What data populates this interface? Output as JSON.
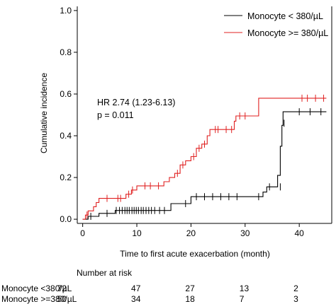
{
  "chart_data": {
    "type": "line",
    "xlabel": "Time to first acute exacerbation (month)",
    "ylabel": "Cumulative incidence",
    "xlim": [
      -1,
      46
    ],
    "ylim": [
      -0.02,
      1.02
    ],
    "x_ticks": [
      0,
      10,
      20,
      30,
      40
    ],
    "y_ticks": [
      0.0,
      0.2,
      0.4,
      0.6,
      0.8,
      1.0
    ],
    "x_tick_labels": [
      "0",
      "10",
      "20",
      "30",
      "40"
    ],
    "y_tick_labels": [
      "0.0",
      "0.2",
      "0.4",
      "0.6",
      "0.8",
      "1.0"
    ],
    "legend_position": "top-right",
    "annotations": [
      "HR 2.74 (1.23-6.13)",
      "p =  0.011"
    ],
    "series": [
      {
        "name": "Monocyte  < 380/µL",
        "color": "#000000",
        "steps": [
          [
            0,
            0
          ],
          [
            1,
            0.014
          ],
          [
            3,
            0.028
          ],
          [
            6,
            0.042
          ],
          [
            7,
            0.042
          ],
          [
            16,
            0.042
          ],
          [
            16.3,
            0.075
          ],
          [
            19.5,
            0.075
          ],
          [
            20,
            0.108
          ],
          [
            33,
            0.108
          ],
          [
            33.3,
            0.13
          ],
          [
            34,
            0.155
          ],
          [
            35,
            0.155
          ],
          [
            36,
            0.21
          ],
          [
            36.5,
            0.35
          ],
          [
            36.8,
            0.45
          ],
          [
            37,
            0.515
          ],
          [
            45,
            0.515
          ]
        ],
        "censored": [
          [
            1.5,
            0.014
          ],
          [
            4.5,
            0.028
          ],
          [
            6.2,
            0.042
          ],
          [
            6.8,
            0.042
          ],
          [
            7.3,
            0.042
          ],
          [
            7.8,
            0.042
          ],
          [
            8.2,
            0.042
          ],
          [
            8.6,
            0.042
          ],
          [
            9.1,
            0.042
          ],
          [
            9.5,
            0.042
          ],
          [
            9.9,
            0.042
          ],
          [
            10.3,
            0.042
          ],
          [
            10.8,
            0.042
          ],
          [
            11.2,
            0.042
          ],
          [
            11.7,
            0.042
          ],
          [
            12.2,
            0.042
          ],
          [
            12.7,
            0.042
          ],
          [
            13.3,
            0.042
          ],
          [
            14.2,
            0.042
          ],
          [
            15.1,
            0.042
          ],
          [
            19,
            0.075
          ],
          [
            21,
            0.108
          ],
          [
            22.5,
            0.108
          ],
          [
            24,
            0.108
          ],
          [
            25.5,
            0.108
          ],
          [
            27,
            0.108
          ],
          [
            28.5,
            0.108
          ],
          [
            32.5,
            0.108
          ],
          [
            34.5,
            0.155
          ],
          [
            36.5,
            0.155
          ],
          [
            37.2,
            0.46
          ],
          [
            40,
            0.515
          ],
          [
            42,
            0.515
          ],
          [
            44,
            0.515
          ]
        ]
      },
      {
        "name": "Monocyte  >= 380/µL",
        "color": "#e02020",
        "steps": [
          [
            0,
            0
          ],
          [
            0.5,
            0.02
          ],
          [
            1,
            0.04
          ],
          [
            2,
            0.06
          ],
          [
            2.5,
            0.08
          ],
          [
            3,
            0.1
          ],
          [
            8,
            0.12
          ],
          [
            9,
            0.14
          ],
          [
            10,
            0.16
          ],
          [
            15,
            0.18
          ],
          [
            16,
            0.2
          ],
          [
            17,
            0.22
          ],
          [
            18,
            0.26
          ],
          [
            19,
            0.28
          ],
          [
            20,
            0.3
          ],
          [
            21,
            0.34
          ],
          [
            22,
            0.36
          ],
          [
            23,
            0.4
          ],
          [
            23.5,
            0.43
          ],
          [
            28,
            0.47
          ],
          [
            28.3,
            0.495
          ],
          [
            32,
            0.495
          ],
          [
            32.5,
            0.58
          ],
          [
            45,
            0.58
          ]
        ],
        "censored": [
          [
            0.8,
            0.02
          ],
          [
            4.5,
            0.1
          ],
          [
            6.5,
            0.1
          ],
          [
            7,
            0.1
          ],
          [
            8.5,
            0.12
          ],
          [
            9.2,
            0.14
          ],
          [
            11.5,
            0.16
          ],
          [
            12.5,
            0.16
          ],
          [
            14,
            0.16
          ],
          [
            17.5,
            0.22
          ],
          [
            18.5,
            0.26
          ],
          [
            20.5,
            0.3
          ],
          [
            21.5,
            0.34
          ],
          [
            22.5,
            0.36
          ],
          [
            24.5,
            0.43
          ],
          [
            25,
            0.43
          ],
          [
            26.5,
            0.43
          ],
          [
            27.5,
            0.43
          ],
          [
            29,
            0.495
          ],
          [
            30,
            0.495
          ],
          [
            40.5,
            0.58
          ],
          [
            41.5,
            0.58
          ],
          [
            43,
            0.58
          ],
          [
            44.5,
            0.58
          ]
        ]
      }
    ]
  },
  "risk_table": {
    "title": "Number at risk",
    "rows": [
      {
        "label": "Monocyte <380/µL",
        "values": [
          "72",
          "47",
          "27",
          "13",
          "2"
        ]
      },
      {
        "label": "Monocyte >=380/µL",
        "values": [
          "50",
          "34",
          "18",
          "7",
          "3"
        ]
      }
    ]
  }
}
